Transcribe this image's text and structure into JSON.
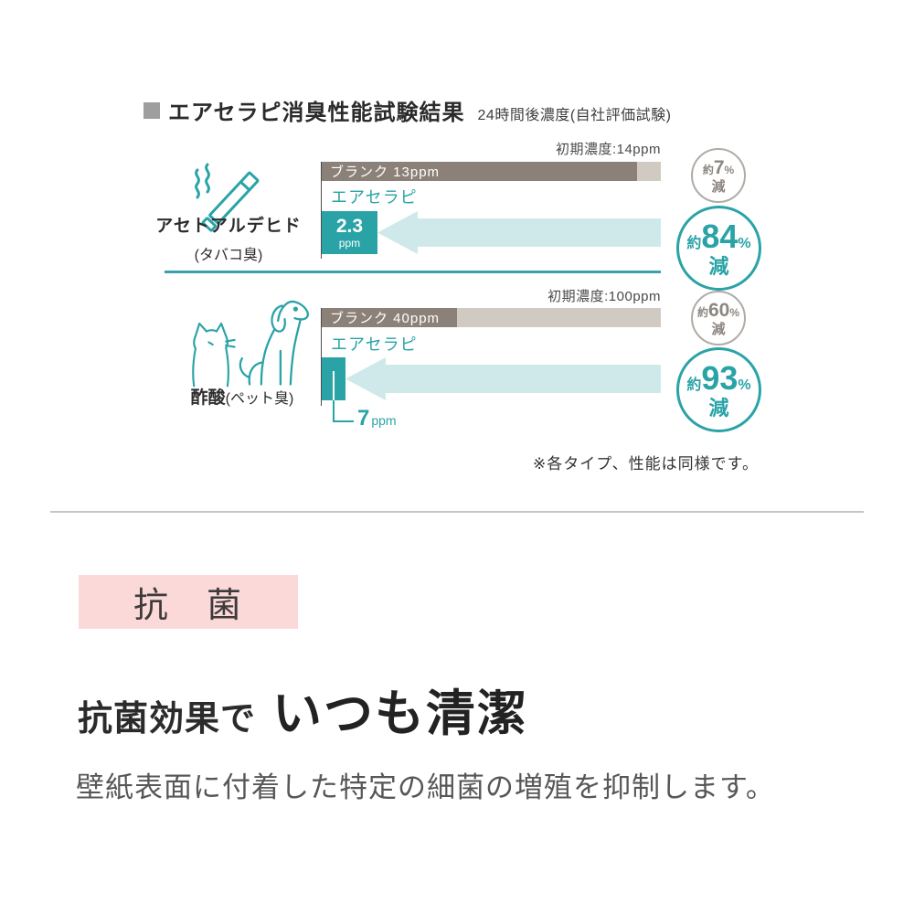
{
  "colors": {
    "teal": "#2AA3A7",
    "teal_light": "#CFE9EA",
    "divider_teal": "#3AA0AE",
    "bar_dark": "#8C8178",
    "bar_light": "#D0CAC3",
    "circle_gray_border": "#B1ABA6",
    "circle_gray_text": "#8D8781",
    "pink": "#FAD9D8",
    "pink_shadow": "#C9A7AB",
    "text_dark": "#2F2F2F",
    "text_gray": "#575757",
    "bullet_gray": "#9E9E9E",
    "bar_text": "#FFFFFF"
  },
  "header": {
    "title": "エアセラピ消臭性能試験結果",
    "subtitle": "24時間後濃度(自社評価試験)"
  },
  "chart_data": [
    {
      "type": "bar",
      "substance": "アセトアルデヒド",
      "substance_note": "(タバコ臭)",
      "icon": "cigarette-icon",
      "initial_label": "初期濃度:14ppm",
      "initial_ppm": 14,
      "blank": {
        "label": "ブランク 13ppm",
        "ppm": 13,
        "reduction": {
          "prefix": "約",
          "value": 7,
          "unit": "%",
          "suffix": "減"
        }
      },
      "product": {
        "label": "エアセラピ",
        "ppm": 2.3,
        "value_text": "2.3",
        "unit": "ppm",
        "reduction": {
          "prefix": "約",
          "value": 84,
          "unit": "%",
          "suffix": "減"
        }
      }
    },
    {
      "type": "bar",
      "substance": "酢酸",
      "substance_note": "(ペット臭)",
      "icon": "cat-dog-icon",
      "initial_label": "初期濃度:100ppm",
      "initial_ppm": 100,
      "blank": {
        "label": "ブランク 40ppm",
        "ppm": 40,
        "reduction": {
          "prefix": "約",
          "value": 60,
          "unit": "%",
          "suffix": "減"
        }
      },
      "product": {
        "label": "エアセラピ",
        "ppm": 7,
        "callout_value": "7",
        "callout_unit": "ppm",
        "reduction": {
          "prefix": "約",
          "value": 93,
          "unit": "%",
          "suffix": "減"
        }
      }
    }
  ],
  "note": "※各タイプ、性能は同様です。",
  "antibacterial": {
    "badge": "抗　菌",
    "heading_lead": "抗菌効果で",
    "heading_main": "いつも清潔",
    "description": "壁紙表面に付着した特定の細菌の増殖を抑制します。"
  },
  "icons": {
    "bullet": "square-bullet-icon",
    "row0": "cigarette-icon",
    "row1": [
      "cat-icon",
      "dog-icon"
    ]
  }
}
